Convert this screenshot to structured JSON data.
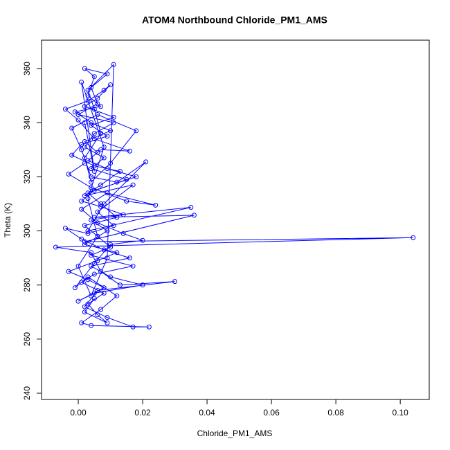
{
  "chart_data": {
    "type": "line",
    "markers": true,
    "color": "#0000ff",
    "title": "ATOM4 Northbound Chloride_PM1_AMS",
    "x_label": "Chloride_PM1_AMS",
    "y_label": "Theta (K)",
    "xlim": [
      -0.0114,
      0.109
    ],
    "ylim": [
      237.7,
      370.5
    ],
    "xticks": [
      {
        "value": 0,
        "label": "0.00"
      },
      {
        "value": 0.02,
        "label": "0.02"
      },
      {
        "value": 0.04,
        "label": "0.04"
      },
      {
        "value": 0.06,
        "label": "0.06"
      },
      {
        "value": 0.08,
        "label": "0.08"
      },
      {
        "value": 0.1,
        "label": "0.10"
      }
    ],
    "yticks": [
      240,
      260,
      280,
      300,
      320,
      340,
      360
    ],
    "x": [
      0.002,
      0.005,
      0.001,
      0.008,
      0.003,
      0.006,
      0.0,
      0.004,
      0.009,
      0.011,
      0.003,
      0.005,
      0.007,
      0.002,
      0.004,
      0.01,
      0.018,
      0.006,
      -0.002,
      0.001,
      0.004,
      0.012,
      0.021,
      0.008,
      0.003,
      0.035,
      0.005,
      0.036,
      0.002,
      0.104,
      -0.007,
      0.004,
      0.007,
      0.013,
      0.03,
      0.006,
      0.002,
      0.009,
      0.017,
      0.022,
      0.004,
      0.001,
      0.007,
      0.012,
      0.003,
      -0.001,
      0.005,
      0.01,
      0.02,
      0.014,
      0.006,
      0.001,
      0.009,
      0.024,
      0.015,
      0.004,
      -0.003,
      0.002,
      0.007,
      0.016,
      0.005,
      0.0,
      -0.004,
      0.003,
      0.008,
      0.01,
      0.006,
      0.002,
      0.011,
      0.004,
      0.009,
      0.001,
      -0.002,
      0.005,
      0.013,
      0.007,
      0.002,
      0.017,
      0.006,
      0.011,
      0.003,
      -0.004,
      0.001,
      0.008,
      0.016,
      0.004,
      0.01,
      0.02,
      0.005,
      0.0,
      0.008,
      0.003,
      -0.003,
      0.006,
      0.012,
      0.002,
      0.009,
      0.004,
      0.014,
      0.007,
      0.001,
      0.005,
      0.018,
      0.009,
      0.003,
      0.006,
      0.002,
      0.01,
      0.004,
      -0.001,
      0.007,
      0.003,
      0.005,
      0.002,
      0.009,
      0.004,
      0.006,
      0.0,
      0.011,
      0.005,
      0.002,
      0.008,
      0.004,
      0.015,
      0.003,
      0.007,
      0.012,
      0.002,
      0.006,
      0.01,
      0.004,
      0.017,
      0.005,
      0.001,
      0.008,
      0.003,
      0.006,
      0.009,
      0.002,
      0.005
    ],
    "values": [
      340,
      322,
      355,
      331,
      312,
      298,
      287,
      276,
      290,
      361.5,
      352,
      345,
      336,
      327,
      318,
      325,
      337,
      343,
      338,
      330,
      320,
      318,
      325.5,
      310,
      300,
      308.7,
      305,
      305.8,
      296,
      297.5,
      294,
      292,
      285,
      280,
      281.3,
      278,
      272,
      268,
      264.5,
      264.5,
      265,
      266,
      271,
      276,
      283,
      279,
      288,
      295,
      296.5,
      299,
      303,
      308,
      314,
      309.5,
      311,
      316,
      321,
      325,
      330,
      329.5,
      334,
      341,
      345,
      348,
      352,
      354,
      349,
      346,
      342,
      339,
      335,
      332,
      328,
      324,
      322,
      317,
      313,
      317,
      307,
      302,
      299,
      301,
      297,
      293,
      290,
      287,
      283,
      280,
      277,
      274,
      279,
      282,
      285,
      289,
      292,
      295,
      300,
      304,
      306,
      309,
      311,
      315,
      320,
      323,
      326,
      329,
      333,
      337,
      340,
      344,
      346,
      350,
      357,
      360,
      358,
      353,
      347,
      343,
      340,
      336,
      331,
      327,
      323,
      319,
      314,
      310,
      305,
      302,
      298,
      294,
      291,
      287,
      284,
      281,
      277,
      273,
      269,
      266,
      270,
      275
    ]
  }
}
